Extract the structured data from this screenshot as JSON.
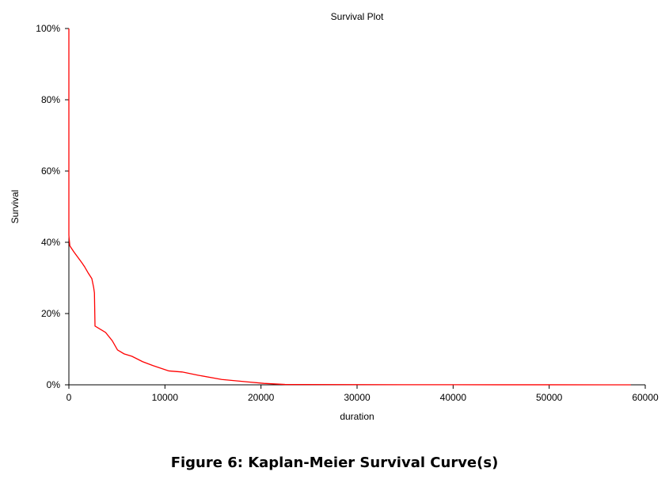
{
  "chart_data": {
    "type": "line",
    "title": "Survival Plot",
    "xlabel": "duration",
    "ylabel": "Survival",
    "xlim": [
      0,
      60000
    ],
    "ylim": [
      0,
      100
    ],
    "xticks": [
      0,
      10000,
      20000,
      30000,
      40000,
      50000,
      60000
    ],
    "xtick_labels": [
      "0",
      "10000",
      "20000",
      "30000",
      "40000",
      "50000",
      "60000"
    ],
    "yticks": [
      0,
      20,
      40,
      60,
      80,
      100
    ],
    "ytick_labels": [
      "0%",
      "20%",
      "40%",
      "60%",
      "80%",
      "100%"
    ],
    "grid": false,
    "series": [
      {
        "name": "Kaplan-Meier",
        "color": "#ff0000",
        "x": [
          0,
          0,
          20,
          100,
          520,
          1340,
          1620,
          2030,
          2390,
          2580,
          2660,
          2720,
          3820,
          4510,
          5060,
          5740,
          6570,
          7670,
          8760,
          10410,
          11790,
          13440,
          15910,
          18660,
          20310,
          22500,
          30000,
          40000,
          50000,
          58500
        ],
        "y": [
          100,
          42,
          41.3,
          39,
          37.3,
          34.3,
          33.2,
          31.3,
          29.8,
          27.3,
          25.8,
          16.5,
          14.7,
          12.4,
          9.8,
          8.7,
          8.0,
          6.5,
          5.4,
          3.9,
          3.6,
          2.7,
          1.5,
          0.8,
          0.4,
          0.1,
          0.05,
          0.02,
          0.01,
          0
        ]
      }
    ]
  },
  "caption": "Figure 6: Kaplan-Meier Survival Curve(s)"
}
